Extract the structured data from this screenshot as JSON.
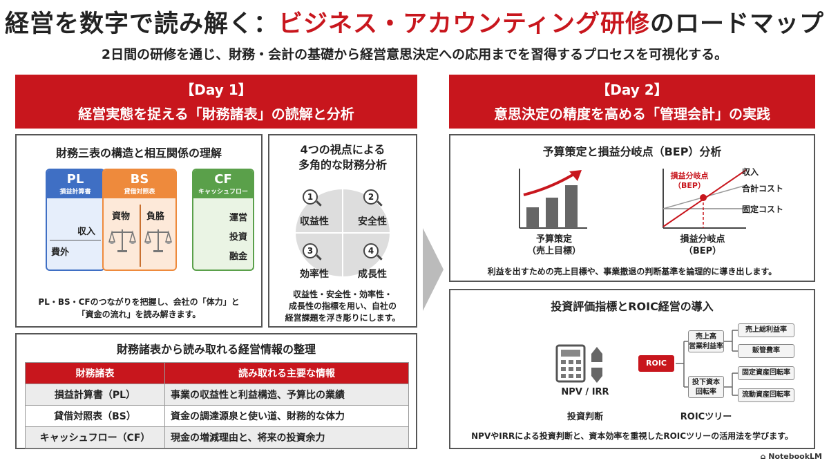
{
  "header": {
    "title_pre": "経営を数字で読み解く：",
    "title_red": "ビジネス・アカウンティング研修",
    "title_post": "のロードマップ",
    "subtitle": "2日間の研修を通じ、財務・会計の基礎から経営意思決定への応用までを習得するプロセスを可視化する。"
  },
  "day1": {
    "label": "【Day 1】",
    "title": "経営実態を捉える「財務諸表」の読解と分析",
    "structure": {
      "title": "財務三表の構造と相互関係の理解",
      "pl": {
        "abbr": "PL",
        "name": "損益計算書",
        "income": "収入",
        "expense": "費外"
      },
      "bs": {
        "abbr": "BS",
        "name": "貸借対照表",
        "assets": "資物",
        "liabilities": "負胳"
      },
      "cf": {
        "abbr": "CF",
        "name": "キャッシュフロー",
        "items": [
          "運営",
          "投資",
          "融金"
        ]
      },
      "desc1": "PL・BS・CFのつながりを把握し、会社の「体力」と",
      "desc2": "「資金の流れ」を読み解きます。"
    },
    "perspectives": {
      "title1": "4つの視点による",
      "title2": "多角的な財務分析",
      "items": [
        {
          "num": "1",
          "label": "収益性"
        },
        {
          "num": "2",
          "label": "安全性"
        },
        {
          "num": "3",
          "label": "効率性"
        },
        {
          "num": "4",
          "label": "成長性"
        }
      ],
      "desc1": "収益性・安全性・効率性・",
      "desc2": "成長性の指標を用い、自社の",
      "desc3": "経営課題を浮き彫りにします。"
    },
    "table": {
      "title": "財務諸表から読み取れる経営情報の整理",
      "headers": [
        "財務諸表",
        "読み取れる主要な情報"
      ],
      "rows": [
        [
          "損益計算書（PL）",
          "事業の収益性と利益構造、予算比の業績"
        ],
        [
          "貸借対照表（BS）",
          "資金の調達源泉と使い道、財務的な体力"
        ],
        [
          "キャッシュフロー（CF）",
          "現金の増減理由と、将来の投資余力"
        ]
      ]
    }
  },
  "day2": {
    "label": "【Day 2】",
    "title": "意思決定の精度を高める「管理会計」の実践",
    "budget": {
      "title": "予算策定と損益分岐点（BEP）分析",
      "left_caption1": "予算策定",
      "left_caption2": "（売上目標）",
      "bep_label1": "損益分岐点",
      "bep_label2": "（BEP）",
      "line_revenue": "収入",
      "line_total": "合計コスト",
      "line_fixed": "固定コスト",
      "right_caption1": "損益分岐点",
      "right_caption2": "（BEP）",
      "desc": "利益を出すための売上目標や、事業撤退の判断基準を論理的に導き出します。"
    },
    "roic": {
      "title": "投資評価指標とROIC経営の導入",
      "npv_label": "NPV / IRR",
      "npv_caption": "投資判断",
      "root": "ROIC",
      "mid1": "売上高\n営業利益率",
      "mid2": "投下資本\n回転率",
      "leaves": [
        "売上総利益率",
        "販管費率",
        "固定資産回転率",
        "流動資産回転率"
      ],
      "tree_caption": "ROICツリー",
      "desc": "NPVやIRRによる投資判断と、資本効率を重視したROICツリーの活用法を学びます。"
    }
  },
  "footer": {
    "brand": "NotebookLM"
  },
  "colors": {
    "red": "#c8161d",
    "blue": "#3f6fc4",
    "orange": "#ee8a3c",
    "green": "#5aa04a"
  }
}
